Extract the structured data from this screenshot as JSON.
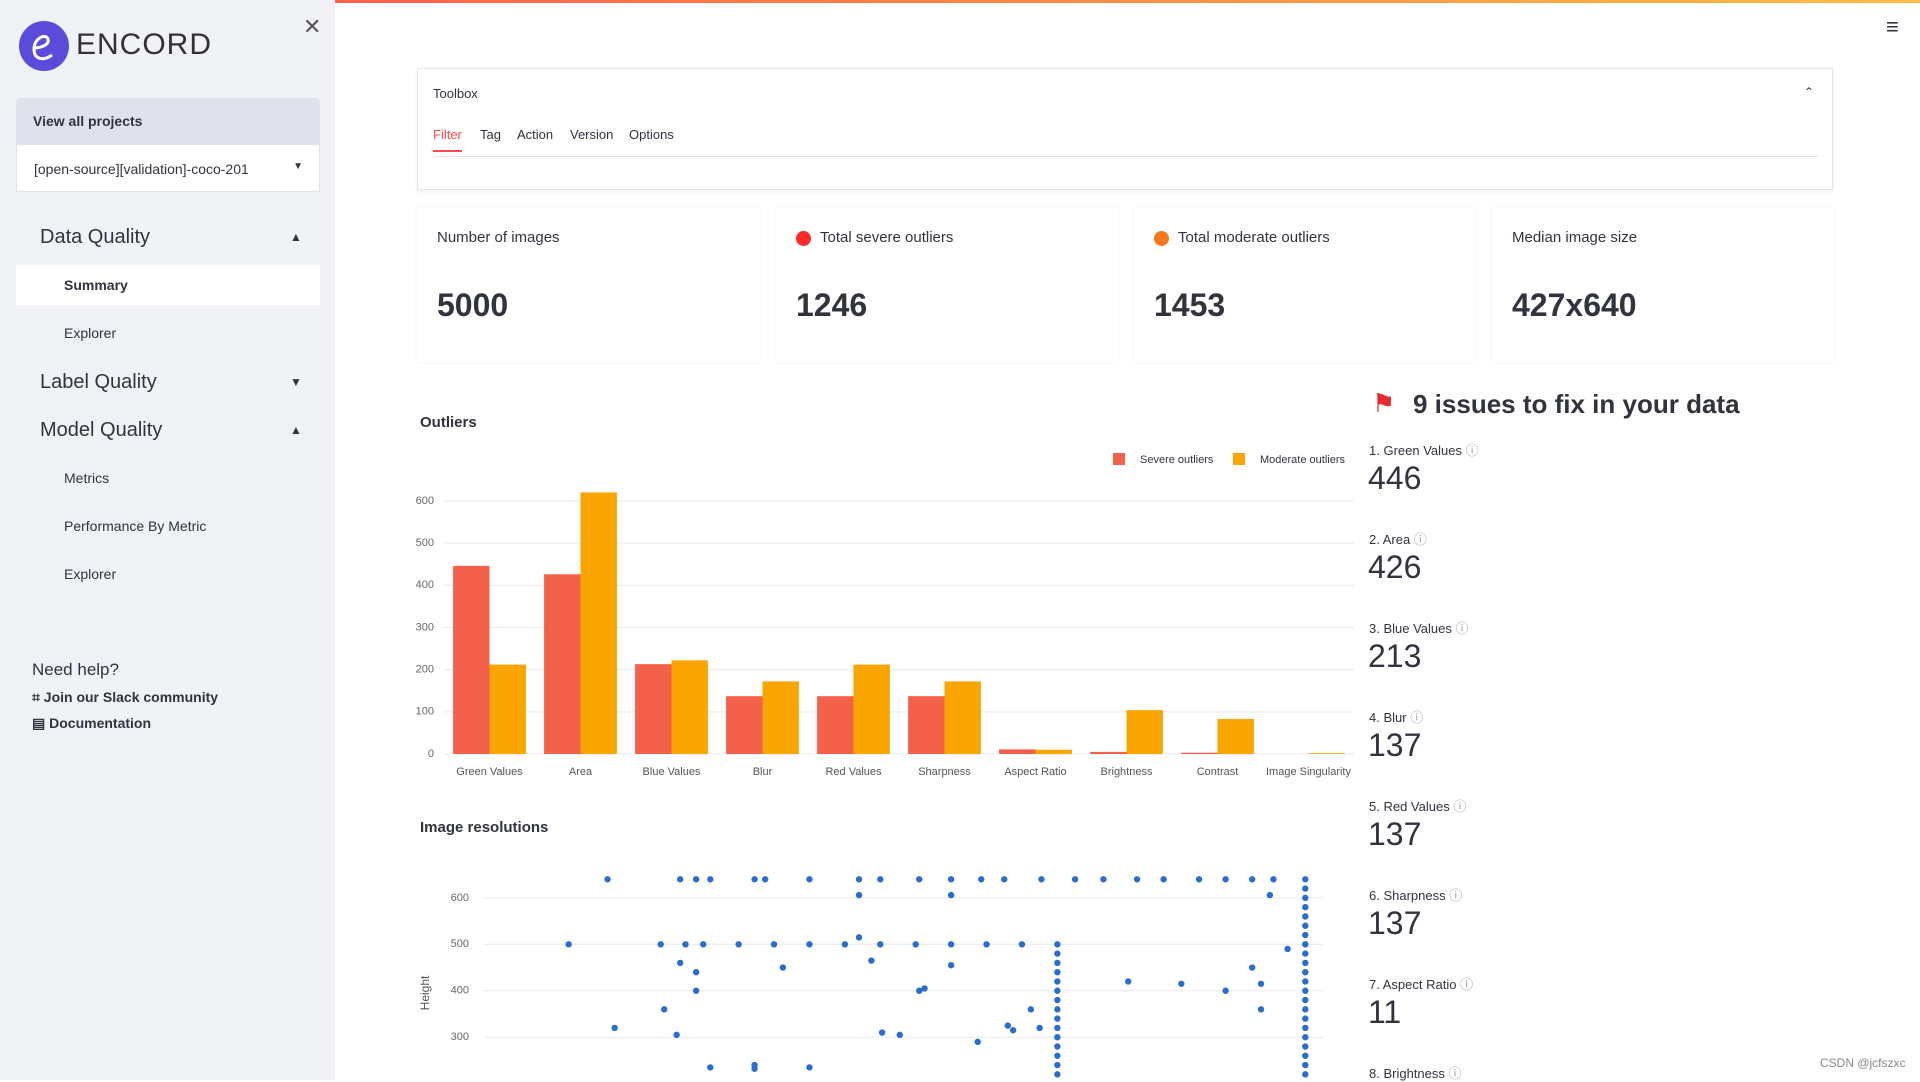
{
  "sidebar": {
    "brand": "ENCORD",
    "view_all": "View all projects",
    "project": "[open-source][validation]-coco-201",
    "sections": [
      {
        "title": "Data Quality",
        "items": [
          "Summary",
          "Explorer"
        ]
      },
      {
        "title": "Label Quality"
      },
      {
        "title": "Model Quality",
        "items": [
          "Metrics",
          "Performance By Metric",
          "Explorer"
        ]
      }
    ],
    "help": {
      "title": "Need help?",
      "links": [
        "Join our Slack community",
        "Documentation"
      ]
    }
  },
  "toolbox": {
    "title": "Toolbox",
    "tabs": [
      "Filter",
      "Tag",
      "Action",
      "Version",
      "Options"
    ]
  },
  "metrics": [
    {
      "label": "Number of images",
      "value": 5000
    },
    {
      "label": "Total severe outliers",
      "value": 1246
    },
    {
      "label": "Total moderate outliers",
      "value": 1453
    },
    {
      "label": "Median image size",
      "value": "427x640"
    }
  ],
  "issues": {
    "title": "9 issues to fix in your data",
    "items": [
      {
        "label": "1. Green Values",
        "value": 446
      },
      {
        "label": "2. Area",
        "value": 426
      },
      {
        "label": "3. Blue Values",
        "value": 213
      },
      {
        "label": "4. Blur",
        "value": 137
      },
      {
        "label": "5. Red Values",
        "value": 137
      },
      {
        "label": "6. Sharpness",
        "value": 137
      },
      {
        "label": "7. Aspect Ratio",
        "value": 11
      },
      {
        "label": "8. Brightness"
      }
    ]
  },
  "watermark": "CSDN @jcfszxc",
  "chart_data": [
    {
      "type": "bar",
      "title": "Outliers",
      "categories": [
        "Green Values",
        "Area",
        "Blue Values",
        "Blur",
        "Red Values",
        "Sharpness",
        "Aspect Ratio",
        "Brightness",
        "Contrast",
        "Image Singularity"
      ],
      "series": [
        {
          "name": "Severe outliers",
          "color": "#f4614a",
          "values": [
            446,
            426,
            213,
            137,
            137,
            137,
            11,
            5,
            3,
            0
          ]
        },
        {
          "name": "Moderate outliers",
          "color": "#f9a602",
          "values": [
            212,
            620,
            222,
            172,
            212,
            172,
            10,
            104,
            83,
            2
          ]
        }
      ],
      "ylim": [
        0,
        640
      ],
      "yticks": [
        0,
        100,
        200,
        300,
        400,
        500,
        600
      ],
      "grid": true
    },
    {
      "type": "scatter",
      "title": "Image resolutions",
      "y_label": "Height",
      "color": "#2a6dd0",
      "xlim": [
        170,
        650
      ],
      "ylim": [
        210,
        660
      ],
      "yticks": [
        300,
        400,
        500,
        600
      ],
      "grid": true,
      "x": [
        246,
        287,
        296,
        304,
        329,
        335,
        360,
        388,
        400,
        422,
        440,
        457,
        470,
        491,
        510,
        526,
        545,
        560,
        580,
        595,
        610,
        622,
        640,
        224,
        276,
        290,
        300,
        320,
        340,
        360,
        380,
        400,
        420,
        440,
        460,
        480,
        500,
        500,
        500,
        500,
        500,
        500,
        500,
        500,
        500,
        500,
        500,
        500,
        500,
        500,
        500,
        640,
        640,
        640,
        640,
        640,
        640,
        640,
        640,
        640,
        640,
        640,
        640,
        640,
        640,
        640,
        640,
        640,
        640,
        640,
        640,
        640,
        250,
        278,
        287,
        296,
        296,
        285,
        304,
        329,
        329,
        345,
        360,
        388,
        395,
        401,
        411,
        422,
        425,
        440,
        455,
        472,
        475,
        485,
        490,
        540,
        570,
        595,
        610,
        615,
        615,
        630,
        620,
        388,
        440
      ],
      "values": [
        640,
        640,
        640,
        640,
        640,
        640,
        640,
        640,
        640,
        640,
        640,
        640,
        640,
        640,
        640,
        640,
        640,
        640,
        640,
        640,
        640,
        640,
        640,
        500,
        500,
        500,
        500,
        500,
        500,
        500,
        500,
        500,
        500,
        500,
        500,
        500,
        500,
        480,
        460,
        440,
        420,
        400,
        380,
        360,
        340,
        320,
        300,
        280,
        260,
        240,
        220,
        620,
        600,
        580,
        560,
        540,
        520,
        500,
        480,
        460,
        440,
        420,
        400,
        380,
        360,
        340,
        320,
        300,
        280,
        260,
        240,
        220,
        320,
        360,
        460,
        440,
        400,
        305,
        235,
        240,
        232,
        450,
        235,
        515,
        465,
        310,
        305,
        400,
        405,
        455,
        290,
        325,
        315,
        360,
        320,
        420,
        415,
        400,
        450,
        415,
        360,
        490,
        606,
        606,
        606
      ]
    }
  ]
}
